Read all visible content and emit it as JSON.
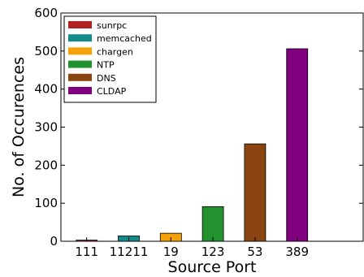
{
  "chart_data": {
    "type": "bar",
    "categories": [
      "111",
      "11211",
      "19",
      "123",
      "53",
      "389"
    ],
    "values": [
      3,
      14,
      21,
      91,
      256,
      506
    ],
    "series_names": [
      "sunrpc",
      "memcached",
      "chargen",
      "NTP",
      "DNS",
      "CLDAP"
    ],
    "colors": [
      "#b22222",
      "#138b8b",
      "#f5a20a",
      "#22922f",
      "#8b4513",
      "#800080"
    ],
    "xlabel": "Source Port",
    "ylabel": "No. of Occurences",
    "ylim": [
      0,
      600
    ],
    "yticks": [
      "0",
      "100",
      "200",
      "300",
      "400",
      "500",
      "600"
    ],
    "legend_position": "top-left",
    "grid": false
  }
}
